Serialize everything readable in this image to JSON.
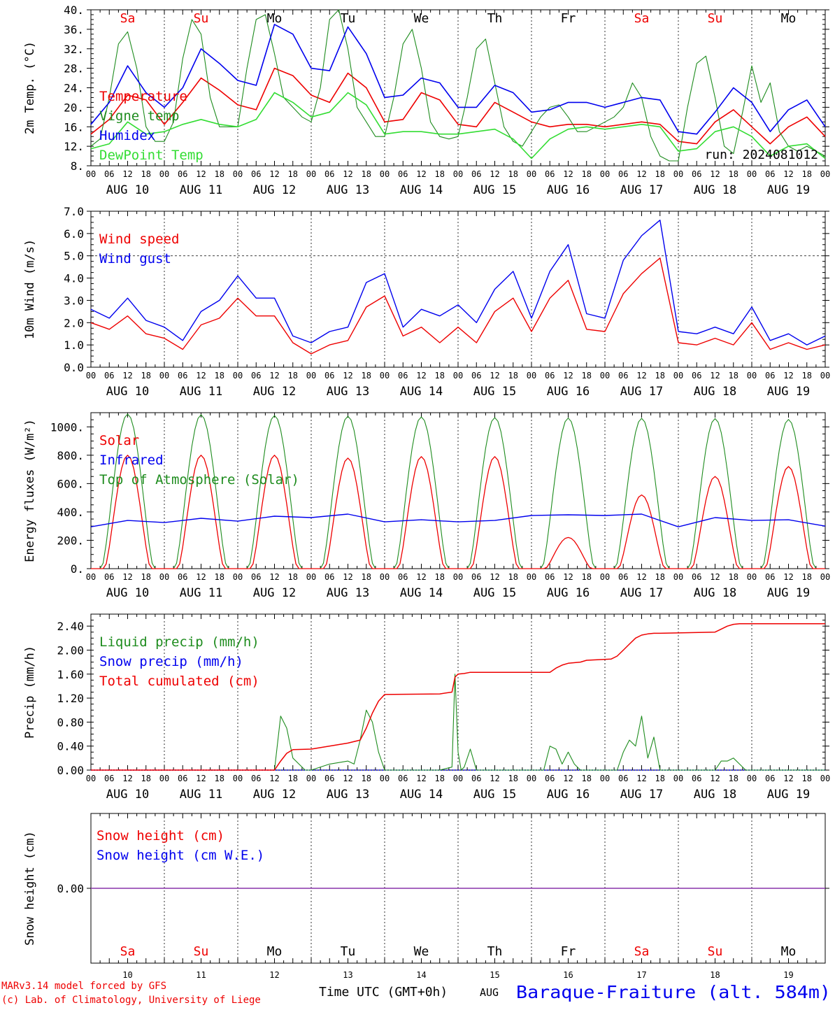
{
  "colors": {
    "red": "#ee0000",
    "green": "#1e8c1e",
    "blue": "#0000ee",
    "lightgreen": "#33dd33",
    "purple": "#8833aa",
    "black": "#000000"
  },
  "days": [
    "10",
    "11",
    "12",
    "13",
    "14",
    "15",
    "16",
    "17",
    "18",
    "19"
  ],
  "day_dates": [
    "AUG 10",
    "AUG 11",
    "AUG 12",
    "AUG 13",
    "AUG 14",
    "AUG 15",
    "AUG 16",
    "AUG 17",
    "AUG 18",
    "AUG 19"
  ],
  "weekdays": [
    {
      "label": "Sa",
      "color": "red"
    },
    {
      "label": "Su",
      "color": "red"
    },
    {
      "label": "Mo",
      "color": "black"
    },
    {
      "label": "Tu",
      "color": "black"
    },
    {
      "label": "We",
      "color": "black"
    },
    {
      "label": "Th",
      "color": "black"
    },
    {
      "label": "Fr",
      "color": "black"
    },
    {
      "label": "Sa",
      "color": "red"
    },
    {
      "label": "Su",
      "color": "red"
    },
    {
      "label": "Mo",
      "color": "black"
    }
  ],
  "hour_ticks": [
    "00",
    "06",
    "12",
    "18"
  ],
  "last_tick": "00",
  "run_label": "run: 2024081012",
  "footer": {
    "line1": "MARv3.14 model forced by GFS",
    "line2": "(c) Lab. of Climatology, University of Liege",
    "time_label": "Time UTC (GMT+0h)",
    "month": "AUG",
    "station": "Baraque-Fraiture (alt. 584m)"
  },
  "chart_data": [
    {
      "type": "line",
      "ylabel": "2m Temp. (°C)",
      "ylim": [
        8,
        40
      ],
      "yticks": [
        "8.",
        "12.",
        "16.",
        "20.",
        "24.",
        "28.",
        "32.",
        "36.",
        "40."
      ],
      "yticks_values": [
        8,
        12,
        16,
        20,
        24,
        28,
        32,
        36,
        40
      ],
      "x_unit": "hours since AUG 10 00 UTC",
      "series": [
        {
          "name": "Temperature",
          "color": "red",
          "x": [
            0,
            6,
            12,
            18,
            24,
            30,
            36,
            42,
            48,
            54,
            60,
            66,
            72,
            78,
            84,
            90,
            96,
            102,
            108,
            114,
            120,
            126,
            132,
            138,
            144,
            150,
            156,
            162,
            168,
            174,
            180,
            186,
            192,
            198,
            204,
            210,
            216,
            222,
            228,
            234,
            240
          ],
          "values": [
            14.5,
            17.5,
            22.5,
            21.5,
            16.5,
            21.0,
            26.0,
            23.5,
            20.5,
            19.5,
            28.0,
            26.5,
            22.5,
            21.0,
            27.0,
            24.0,
            17.0,
            17.5,
            23.0,
            21.5,
            16.5,
            16.0,
            21.0,
            19.0,
            17.0,
            16.0,
            16.5,
            16.5,
            16.0,
            16.5,
            17.0,
            16.5,
            13.0,
            12.5,
            17.0,
            19.5,
            16.0,
            12.5,
            16.0,
            18.0,
            14.0
          ]
        },
        {
          "name": "Vigne temp",
          "color": "green",
          "x": [
            0,
            3,
            6,
            9,
            12,
            15,
            18,
            21,
            24,
            27,
            30,
            33,
            36,
            39,
            42,
            45,
            48,
            51,
            54,
            57,
            60,
            63,
            66,
            69,
            72,
            75,
            78,
            81,
            84,
            87,
            90,
            93,
            96,
            99,
            102,
            105,
            108,
            111,
            114,
            117,
            120,
            123,
            126,
            129,
            132,
            135,
            138,
            141,
            144,
            147,
            150,
            153,
            156,
            159,
            162,
            165,
            168,
            171,
            174,
            177,
            180,
            183,
            186,
            189,
            192,
            195,
            198,
            201,
            204,
            207,
            210,
            213,
            216,
            219,
            222,
            225,
            228,
            231,
            234,
            237,
            240
          ],
          "values": [
            12.0,
            13.5,
            22.0,
            33.0,
            35.5,
            28.0,
            16.0,
            13.0,
            13.0,
            17.0,
            30.0,
            38.0,
            35.0,
            22.0,
            16.0,
            16.0,
            16.0,
            28.0,
            38.0,
            39.0,
            31.0,
            22.0,
            20.0,
            18.0,
            17.0,
            24.0,
            38.0,
            40.0,
            32.0,
            20.0,
            17.0,
            14.0,
            14.0,
            22.0,
            33.0,
            36.0,
            28.0,
            17.0,
            14.0,
            13.5,
            14.0,
            22.0,
            32.0,
            34.0,
            25.0,
            16.0,
            13.0,
            12.0,
            15.0,
            18.0,
            20.0,
            20.5,
            18.0,
            15.0,
            15.0,
            16.0,
            17.0,
            18.0,
            20.0,
            25.0,
            22.0,
            14.0,
            10.0,
            9.0,
            9.0,
            20.0,
            29.0,
            30.5,
            22.0,
            12.0,
            10.5,
            19.0,
            28.5,
            21.0,
            25.0,
            15.0,
            12.0,
            11.0,
            12.0,
            11.0,
            10.0
          ]
        },
        {
          "name": "Humidex",
          "color": "blue",
          "x": [
            0,
            6,
            12,
            18,
            24,
            30,
            36,
            42,
            48,
            54,
            60,
            66,
            72,
            78,
            84,
            90,
            96,
            102,
            108,
            114,
            120,
            126,
            132,
            138,
            144,
            150,
            156,
            162,
            168,
            174,
            180,
            186,
            192,
            198,
            204,
            210,
            216,
            222,
            228,
            234,
            240
          ],
          "values": [
            16.5,
            21.0,
            28.5,
            23.0,
            20.0,
            24.0,
            32.0,
            29.0,
            25.5,
            24.5,
            37.0,
            35.0,
            28.0,
            27.5,
            36.5,
            31.0,
            22.0,
            22.5,
            26.0,
            25.0,
            20.0,
            20.0,
            24.5,
            23.0,
            19.0,
            19.5,
            21.0,
            21.0,
            20.0,
            21.0,
            22.0,
            21.5,
            15.0,
            14.5,
            19.0,
            24.0,
            21.0,
            15.0,
            19.5,
            21.5,
            16.0
          ]
        },
        {
          "name": "DewPoint Temp",
          "color": "lightgreen",
          "x": [
            0,
            6,
            12,
            18,
            24,
            30,
            36,
            42,
            48,
            54,
            60,
            66,
            72,
            78,
            84,
            90,
            96,
            102,
            108,
            114,
            120,
            126,
            132,
            138,
            144,
            150,
            156,
            162,
            168,
            174,
            180,
            186,
            192,
            198,
            204,
            210,
            216,
            222,
            228,
            234,
            240
          ],
          "values": [
            11.5,
            12.5,
            17.0,
            14.5,
            15.0,
            16.5,
            17.5,
            16.5,
            16.0,
            17.5,
            23.0,
            21.0,
            18.0,
            19.0,
            23.0,
            20.5,
            14.5,
            15.0,
            15.0,
            14.5,
            14.5,
            15.0,
            15.5,
            13.5,
            9.5,
            13.5,
            15.5,
            16.0,
            15.5,
            16.0,
            16.5,
            16.0,
            11.0,
            11.5,
            15.0,
            16.0,
            14.0,
            10.0,
            12.0,
            12.5,
            9.5
          ]
        }
      ]
    },
    {
      "type": "line",
      "ylabel": "10m Wind (m/s)",
      "ylim": [
        0,
        7
      ],
      "yticks": [
        "0.0",
        "1.0",
        "2.0",
        "3.0",
        "4.0",
        "5.0",
        "6.0",
        "7.0"
      ],
      "yticks_values": [
        0,
        1,
        2,
        3,
        4,
        5,
        6,
        7
      ],
      "hline": 5,
      "series": [
        {
          "name": "Wind speed",
          "color": "red",
          "x": [
            0,
            6,
            12,
            18,
            24,
            30,
            36,
            42,
            48,
            54,
            60,
            66,
            72,
            78,
            84,
            90,
            96,
            102,
            108,
            114,
            120,
            126,
            132,
            138,
            144,
            150,
            156,
            162,
            168,
            174,
            180,
            186,
            192,
            198,
            204,
            210,
            216,
            222,
            228,
            234,
            240
          ],
          "values": [
            2.0,
            1.7,
            2.3,
            1.5,
            1.3,
            0.8,
            1.9,
            2.2,
            3.1,
            2.3,
            2.3,
            1.1,
            0.6,
            1.0,
            1.2,
            2.7,
            3.2,
            1.4,
            1.8,
            1.1,
            1.8,
            1.1,
            2.5,
            3.1,
            1.6,
            3.1,
            3.9,
            1.7,
            1.6,
            3.3,
            4.2,
            4.9,
            1.1,
            1.0,
            1.3,
            1.0,
            2.0,
            0.8,
            1.1,
            0.8,
            1.0
          ]
        },
        {
          "name": "Wind gust",
          "color": "blue",
          "x": [
            0,
            6,
            12,
            18,
            24,
            30,
            36,
            42,
            48,
            54,
            60,
            66,
            72,
            78,
            84,
            90,
            96,
            102,
            108,
            114,
            120,
            126,
            132,
            138,
            144,
            150,
            156,
            162,
            168,
            174,
            180,
            186,
            192,
            198,
            204,
            210,
            216,
            222,
            228,
            234,
            240
          ],
          "values": [
            2.6,
            2.2,
            3.1,
            2.1,
            1.8,
            1.2,
            2.5,
            3.0,
            4.1,
            3.1,
            3.1,
            1.4,
            1.1,
            1.6,
            1.8,
            3.8,
            4.2,
            1.8,
            2.6,
            2.3,
            2.8,
            2.0,
            3.5,
            4.3,
            2.2,
            4.3,
            5.5,
            2.4,
            2.2,
            4.8,
            5.9,
            6.6,
            1.6,
            1.5,
            1.8,
            1.5,
            2.7,
            1.2,
            1.5,
            1.0,
            1.4
          ]
        }
      ]
    },
    {
      "type": "line",
      "ylabel": "Energy fluxes (W/m²)",
      "ylim": [
        0,
        1100
      ],
      "yticks": [
        "0.",
        "200.",
        "400.",
        "600.",
        "800.",
        "1000."
      ],
      "yticks_values": [
        0,
        200,
        400,
        600,
        800,
        1000
      ],
      "series": [
        {
          "name": "Solar",
          "color": "red",
          "diurnal_peak_values": [
            800,
            800,
            800,
            780,
            790,
            790,
            220,
            520,
            650,
            720
          ]
        },
        {
          "name": "Infrared",
          "color": "blue",
          "x": [
            0,
            12,
            24,
            36,
            48,
            60,
            72,
            84,
            96,
            108,
            120,
            132,
            144,
            156,
            168,
            180,
            192,
            204,
            216,
            228,
            240
          ],
          "values": [
            295,
            340,
            325,
            355,
            335,
            370,
            360,
            385,
            330,
            345,
            330,
            340,
            375,
            380,
            375,
            385,
            295,
            360,
            340,
            345,
            300
          ]
        },
        {
          "name": "Top of Atmosphere (Solar)",
          "color": "green",
          "diurnal_peak_values": [
            1090,
            1085,
            1080,
            1075,
            1070,
            1065,
            1062,
            1060,
            1058,
            1052
          ]
        }
      ]
    },
    {
      "type": "line",
      "ylabel": "Precip (mm/h)",
      "ylim": [
        0,
        2.6
      ],
      "yticks": [
        "0.00",
        "0.40",
        "0.80",
        "1.20",
        "1.60",
        "2.00",
        "2.40"
      ],
      "yticks_values": [
        0,
        0.4,
        0.8,
        1.2,
        1.6,
        2.0,
        2.4
      ],
      "series": [
        {
          "name": "Liquid precip (mm/h)",
          "color": "green",
          "x": [
            0,
            60,
            62,
            64,
            66,
            68,
            70,
            72,
            78,
            84,
            86,
            88,
            90,
            92,
            94,
            96,
            114,
            118,
            119,
            120,
            121,
            122,
            124,
            126,
            128,
            130,
            148,
            150,
            152,
            154,
            156,
            158,
            160,
            162,
            172,
            174,
            176,
            178,
            180,
            182,
            184,
            186,
            188,
            204,
            206,
            208,
            210,
            212,
            214,
            240
          ],
          "values": [
            0,
            0,
            0.9,
            0.7,
            0.2,
            0.1,
            0,
            0,
            0.1,
            0.15,
            0.1,
            0.5,
            1.0,
            0.8,
            0.3,
            0,
            0,
            0.05,
            1.6,
            0.3,
            0,
            0.05,
            0.35,
            0,
            0,
            0,
            0,
            0.4,
            0.35,
            0.1,
            0.3,
            0.1,
            0,
            0,
            0,
            0.3,
            0.5,
            0.4,
            0.9,
            0.2,
            0.55,
            0,
            0,
            0,
            0.15,
            0.15,
            0.2,
            0.1,
            0,
            0
          ]
        },
        {
          "name": "Snow precip (mm/h)",
          "color": "blue",
          "x": [
            0,
            240
          ],
          "values": [
            0,
            0
          ]
        },
        {
          "name": "Total cumulated (cm)",
          "color": "red",
          "x": [
            0,
            60,
            62,
            64,
            66,
            72,
            84,
            88,
            90,
            92,
            94,
            96,
            114,
            118,
            119,
            120,
            122,
            124,
            126,
            150,
            152,
            154,
            156,
            160,
            162,
            170,
            172,
            174,
            176,
            178,
            180,
            182,
            184,
            186,
            204,
            206,
            208,
            210,
            212,
            214,
            240
          ],
          "values": [
            0,
            0,
            0.15,
            0.28,
            0.34,
            0.35,
            0.45,
            0.5,
            0.7,
            0.95,
            1.15,
            1.26,
            1.27,
            1.3,
            1.55,
            1.6,
            1.61,
            1.63,
            1.63,
            1.63,
            1.7,
            1.75,
            1.78,
            1.8,
            1.83,
            1.85,
            1.9,
            2.0,
            2.1,
            2.2,
            2.25,
            2.27,
            2.28,
            2.28,
            2.3,
            2.35,
            2.4,
            2.43,
            2.44,
            2.44,
            2.44
          ]
        }
      ]
    },
    {
      "type": "line",
      "ylabel": "Snow height (cm)",
      "yticks": [
        "0.00"
      ],
      "yticks_values": [
        0
      ],
      "series": [
        {
          "name": "Snow height (cm)",
          "color": "red",
          "x": [
            0,
            240
          ],
          "values": [
            0,
            0
          ]
        },
        {
          "name": "Snow height (cm W.E.)",
          "color": "blue",
          "x": [
            0,
            240
          ],
          "values": [
            0,
            0
          ]
        }
      ]
    }
  ]
}
